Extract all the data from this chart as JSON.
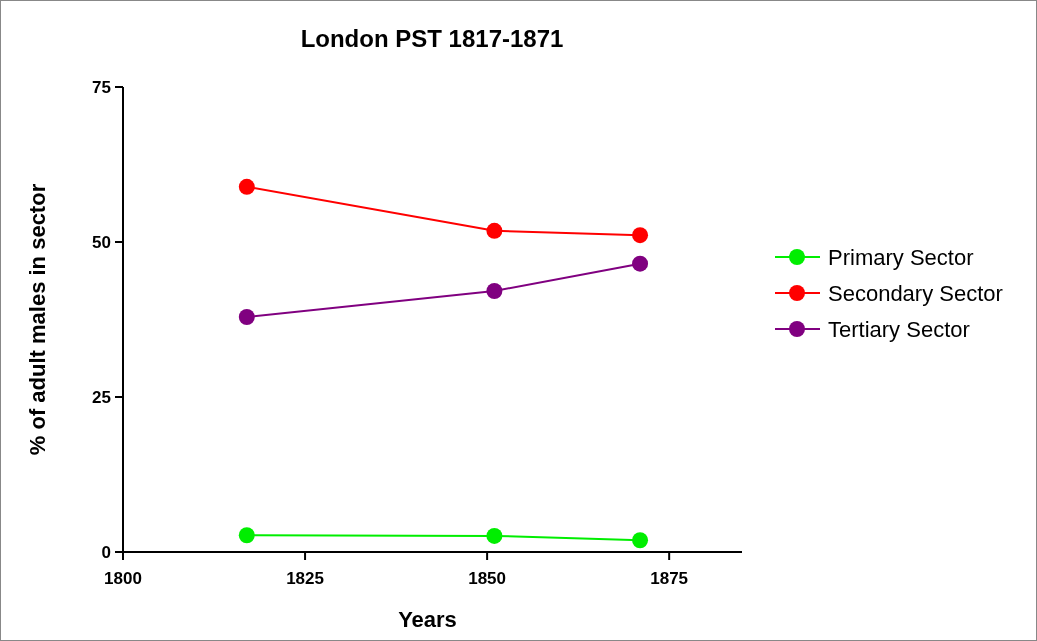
{
  "chart_data": {
    "type": "line",
    "title": "London PST 1817-1871",
    "xlabel": "Years",
    "ylabel": "% of adult males in sector",
    "x": [
      1817,
      1851,
      1871
    ],
    "series": [
      {
        "name": "Primary Sector",
        "color": "#00ee00",
        "values": [
          2.7,
          2.6,
          1.9
        ]
      },
      {
        "name": "Secondary Sector",
        "color": "#ff0000",
        "values": [
          58.9,
          51.8,
          51.1
        ]
      },
      {
        "name": "Tertiary Sector",
        "color": "#800080",
        "values": [
          37.9,
          42.1,
          46.5
        ]
      }
    ],
    "xlim": [
      1800,
      1885
    ],
    "xticks": [
      1800,
      1825,
      1850,
      1875
    ],
    "ylim": [
      0,
      75
    ],
    "yticks": [
      0,
      25,
      50,
      75
    ],
    "grid": false,
    "legend": "right",
    "marker": "circle",
    "line_style": "solid"
  }
}
